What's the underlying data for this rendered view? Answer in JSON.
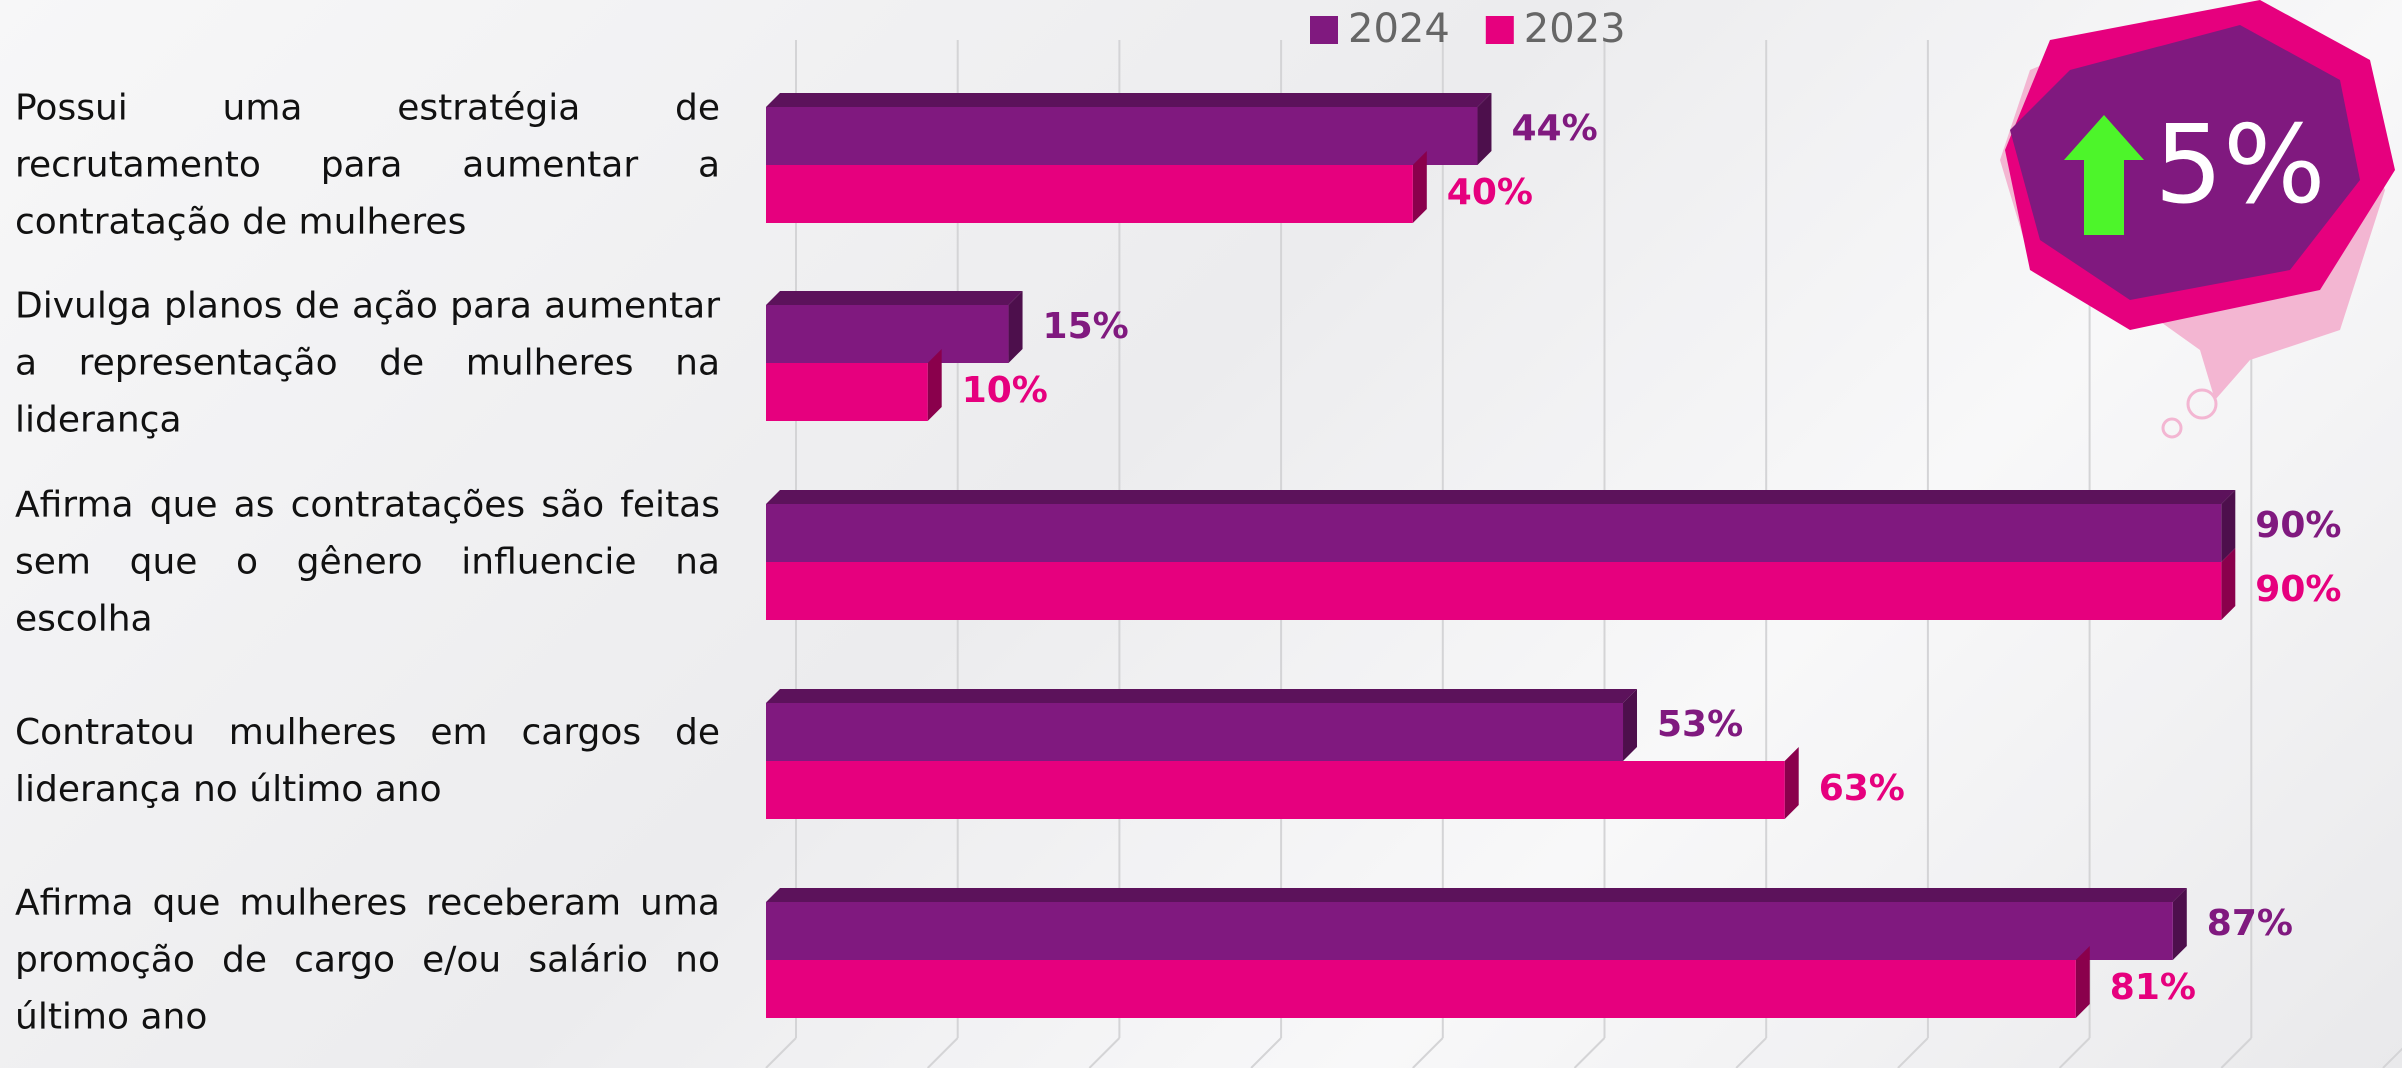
{
  "chart_data": {
    "type": "bar",
    "orientation": "horizontal",
    "categories": [
      "Possui uma estratégia de recrutamento para aumentar a contratação de mulheres",
      "Divulga planos de ação para aumentar a representação de mulheres na liderança",
      "Afirma que as contratações são feitas sem que o gênero influencie na escolha",
      "Contratou mulheres em cargos de liderança no último ano",
      "Afirma que mulheres receberam uma promoção de cargo e/ou salário no último ano"
    ],
    "series": [
      {
        "name": "2024",
        "color": "#80197f",
        "values": [
          44,
          15,
          90,
          53,
          87
        ],
        "value_labels": [
          "44%",
          "15%",
          "90%",
          "53%",
          "87%"
        ]
      },
      {
        "name": "2023",
        "color": "#e6007e",
        "values": [
          40,
          10,
          90,
          63,
          81
        ],
        "value_labels": [
          "40%",
          "10%",
          "90%",
          "63%",
          "81%"
        ]
      }
    ],
    "xlim": [
      0,
      100
    ],
    "xticks": [
      0,
      10,
      20,
      30,
      40,
      50,
      60,
      70,
      80,
      90,
      100
    ],
    "grid": true,
    "legend": "top",
    "annotation": "5%"
  }
}
